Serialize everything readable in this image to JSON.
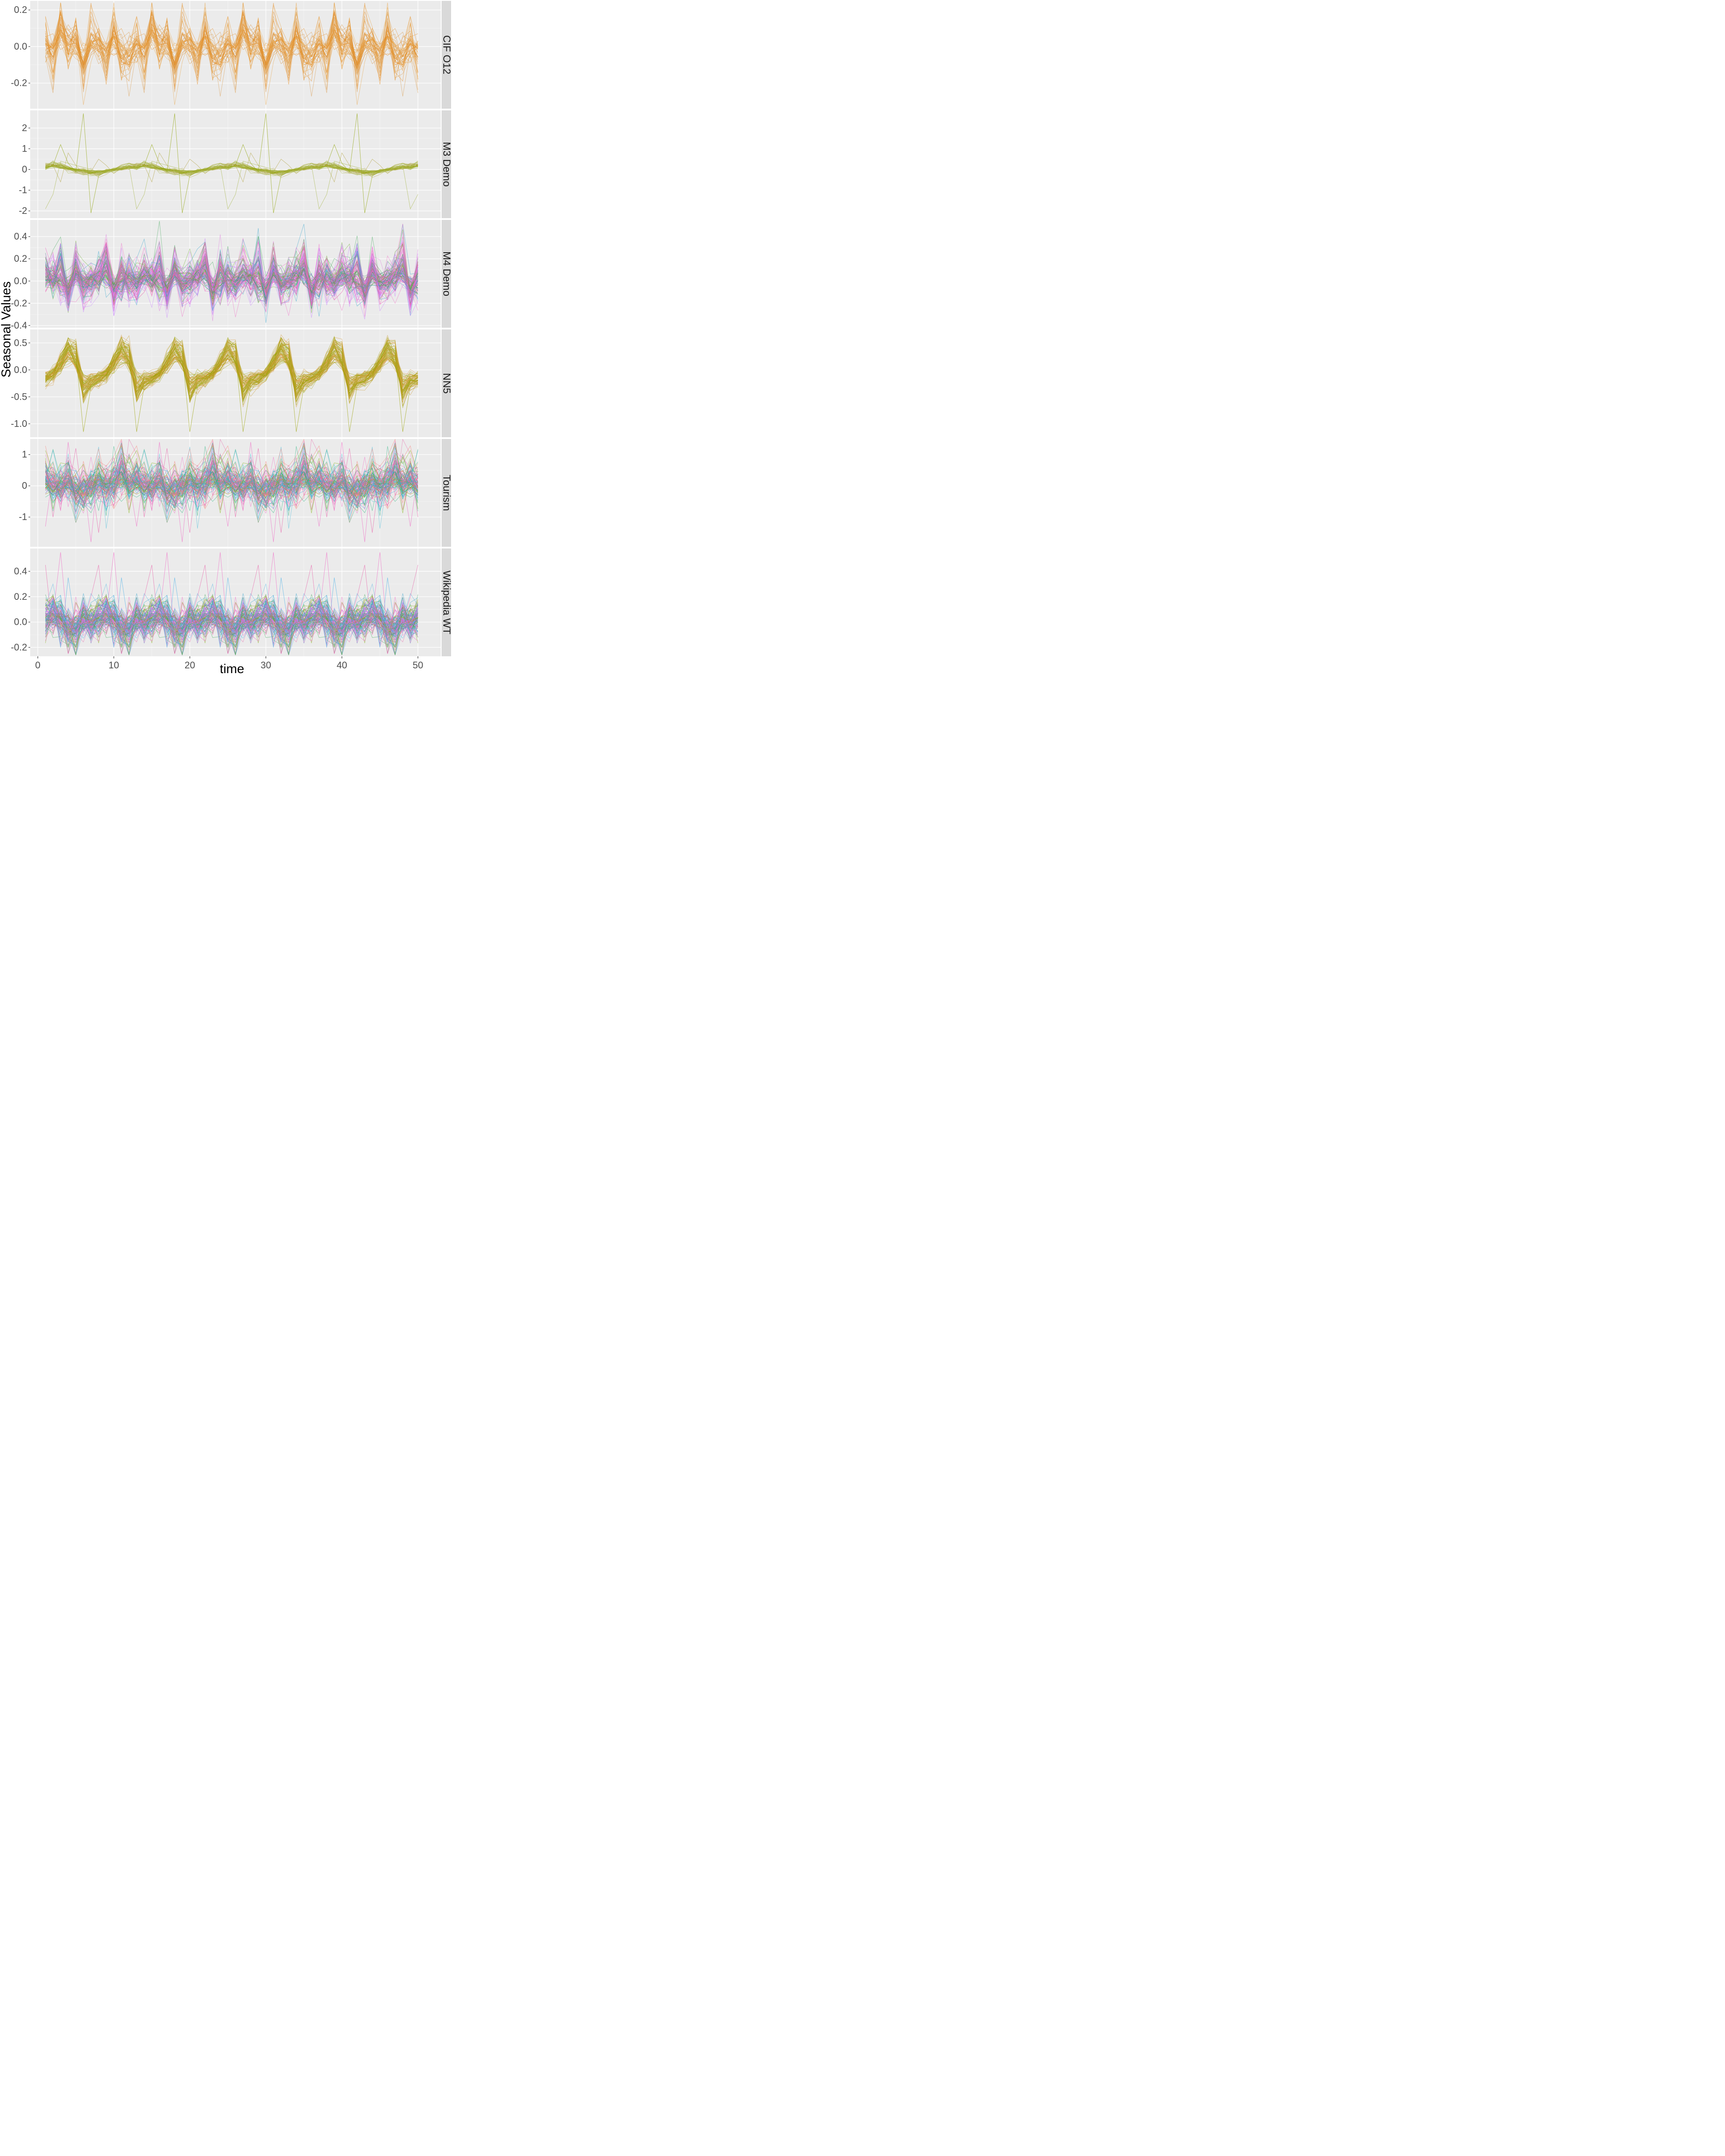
{
  "chart_data": {
    "type": "line",
    "xlabel": "time",
    "ylabel": "Seasonal Values",
    "xlim": [
      -1,
      53
    ],
    "x_ticks": [
      0,
      10,
      20,
      30,
      40,
      50
    ],
    "x_tick_labels": [
      "0",
      "10",
      "20",
      "30",
      "40",
      "50"
    ],
    "grid": true,
    "legend": "none",
    "panels": [
      {
        "strip_label": "CIF O12",
        "ylim": [
          -0.34,
          0.25
        ],
        "y_ticks": [
          0.2,
          0.0,
          -0.2
        ],
        "y_tick_labels": [
          "0.2",
          "0.0",
          "-0.2"
        ],
        "period": 12,
        "colors": [
          "#e58a1f",
          "#e8a03e",
          "#d9923a"
        ],
        "line_count": 45,
        "amplitude": 0.11,
        "noise": 0.5,
        "pattern": [
          0.05,
          -0.12,
          0.18,
          -0.05,
          0.1,
          -0.18,
          0.08,
          0.03,
          -0.1,
          0.15,
          -0.08,
          -0.06
        ]
      },
      {
        "strip_label": "M3 Demo",
        "ylim": [
          -2.35,
          2.85
        ],
        "y_ticks": [
          2,
          1,
          0,
          -1,
          -2
        ],
        "y_tick_labels": [
          "2",
          "1",
          "0",
          "-1",
          "-2"
        ],
        "period": 12,
        "colors": [
          "#8da300",
          "#a8b84a",
          "#b5a64a"
        ],
        "line_count": 35,
        "amplitude": 0.1,
        "noise": 0.6,
        "pattern": [
          0.1,
          0.3,
          0.15,
          0.05,
          -0.05,
          -0.1,
          -0.15,
          -0.2,
          -0.1,
          0.0,
          0.05,
          0.15
        ],
        "outliers": [
          [
            0.1,
            0.2,
            1.2,
            0.3,
            -0.1,
            2.7,
            -2.1,
            -0.3,
            -0.1,
            0.0,
            0.2,
            0.3
          ],
          [
            -1.9,
            -1.2,
            0.4,
            0.3,
            0.2,
            0.1,
            0.0,
            -0.2,
            -0.1,
            0.0,
            0.1,
            0.2
          ],
          [
            0.3,
            0.2,
            -0.6,
            0.8,
            0.2,
            -0.2,
            -0.1,
            0.5,
            0.2,
            -0.2,
            0.1,
            0.0
          ]
        ]
      },
      {
        "strip_label": "M4 Demo",
        "ylim": [
          -0.42,
          0.55
        ],
        "y_ticks": [
          0.4,
          0.2,
          0.0,
          -0.2,
          -0.4
        ],
        "y_tick_labels": [
          "0.4",
          "0.2",
          "0.0",
          "-0.2",
          "-0.4"
        ],
        "period": 6.5,
        "colors": [
          "#f066c4",
          "#e85ea8",
          "#c77cff",
          "#6cae2e",
          "#3ea858",
          "#2aa0cc",
          "#e072e0"
        ],
        "line_count": 110,
        "amplitude": 0.07,
        "noise": 1.1,
        "pattern": [
          0.12,
          0.05,
          -0.05,
          0.3,
          -0.05,
          -0.15,
          -0.1,
          0.15,
          0.1,
          -0.1,
          0.0,
          -0.05
        ],
        "outliers": [
          [
            0.3,
            0.0,
            0.1,
            0.35,
            -0.1,
            -0.3,
            -0.1,
            0.5,
            0.0,
            -0.3,
            0.1,
            -0.2
          ],
          [
            -0.1,
            0.2,
            0.0,
            0.45,
            0.0,
            -0.35,
            0.1,
            0.2,
            -0.1,
            0.1,
            -0.2,
            0.0
          ]
        ]
      },
      {
        "strip_label": "NN5",
        "ylim": [
          -1.25,
          0.75
        ],
        "y_ticks": [
          0.5,
          0.0,
          -0.5,
          -1.0
        ],
        "y_tick_labels": [
          "0.5",
          "0.0",
          "-0.5",
          "-1.0"
        ],
        "period": 7,
        "colors": [
          "#9aa300",
          "#a8a820",
          "#c99a30",
          "#d89a3c"
        ],
        "line_count": 70,
        "amplitude": 1,
        "noise": 0.08,
        "pattern": [
          -0.18,
          -0.1,
          0.1,
          0.42,
          0.35,
          -0.45,
          -0.2
        ],
        "outliers": [
          [
            -0.2,
            -0.1,
            0.2,
            0.6,
            0.3,
            -1.15,
            -0.3
          ]
        ]
      },
      {
        "strip_label": "Tourism",
        "ylim": [
          -1.95,
          1.5
        ],
        "y_ticks": [
          1,
          0,
          -1
        ],
        "y_tick_labels": [
          "1",
          "0",
          "-1"
        ],
        "period": 12,
        "colors": [
          "#f066c4",
          "#e85ea8",
          "#2aa8e0",
          "#3cb8d8",
          "#1fb07a",
          "#7cae00",
          "#f8766d"
        ],
        "line_count": 110,
        "amplitude": 0.35,
        "noise": 0.9,
        "pattern": [
          0.2,
          0.1,
          -0.1,
          0.3,
          -0.3,
          -0.2,
          0.0,
          0.2,
          -0.15,
          0.1,
          0.6,
          0.05
        ],
        "outliers": [
          [
            -1.3,
            0.4,
            -0.8,
            1.4,
            -0.5,
            0.2,
            -1.8,
            0.7,
            0.3,
            -0.4,
            1.0,
            0.2
          ],
          [
            0.8,
            -1.0,
            0.5,
            -0.2,
            1.2,
            -0.6,
            0.3,
            -1.5,
            0.4,
            0.9,
            -0.3,
            0.1
          ]
        ]
      },
      {
        "strip_label": "Wikipedia WT",
        "ylim": [
          -0.27,
          0.58
        ],
        "y_ticks": [
          0.4,
          0.2,
          0.0,
          -0.2
        ],
        "y_tick_labels": [
          "0.4",
          "0.2",
          "0.0",
          "-0.2"
        ],
        "period": 7,
        "colors": [
          "#f066c4",
          "#e85ea8",
          "#4ab0e8",
          "#2aa0cc",
          "#3ea858",
          "#7cae00",
          "#c77cff"
        ],
        "line_count": 130,
        "amplitude": 0.06,
        "noise": 1.2,
        "pattern": [
          0.05,
          0.08,
          0.02,
          -0.05,
          -0.08,
          0.06,
          -0.03
        ],
        "outliers": [
          [
            -0.15,
            0.05,
            0.55,
            -0.1,
            0.1,
            0.0,
            -0.1
          ],
          [
            0.45,
            -0.1,
            0.1,
            -0.25,
            0.15,
            0.0,
            0.2
          ],
          [
            0.0,
            0.15,
            -0.2,
            0.35,
            -0.05,
            0.1,
            -0.1
          ]
        ]
      }
    ]
  }
}
